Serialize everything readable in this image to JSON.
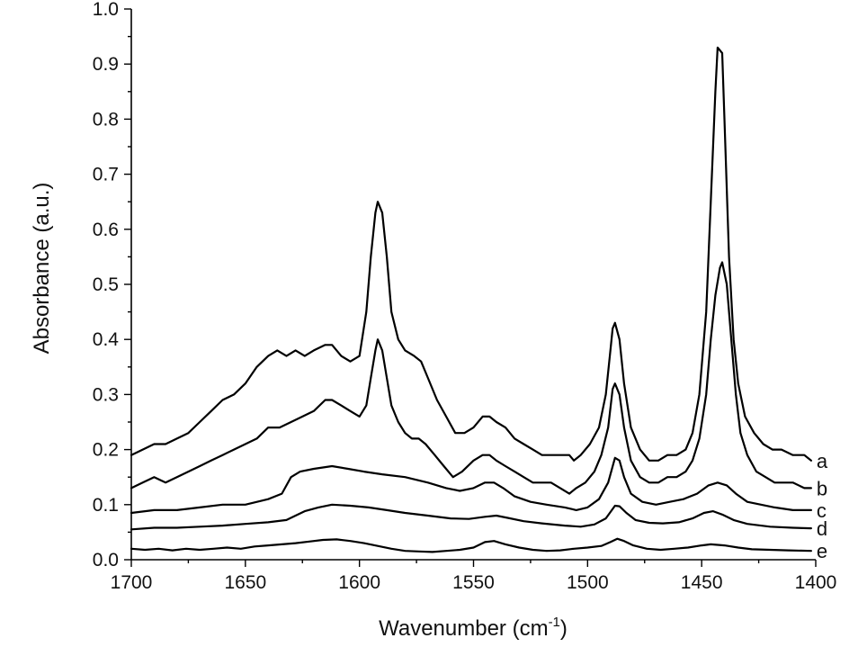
{
  "chart_data": {
    "type": "line",
    "xlabel": "Wavenumber (cm",
    "xlabel_sup": "-1",
    "xlabel_close": ")",
    "ylabel": "Absorbance (a.u.)",
    "xlim": [
      1700,
      1400
    ],
    "ylim": [
      0,
      1.0
    ],
    "x_ticks": [
      "1700",
      "1650",
      "1600",
      "1550",
      "1500",
      "1450",
      "1400"
    ],
    "y_ticks": [
      "0.0",
      "0.1",
      "0.2",
      "0.3",
      "0.4",
      "0.5",
      "0.6",
      "0.7",
      "0.8",
      "0.9",
      "1.0"
    ],
    "grid": false,
    "series": [
      {
        "name": "a",
        "points": [
          [
            1700,
            0.19
          ],
          [
            1695,
            0.2
          ],
          [
            1690,
            0.21
          ],
          [
            1685,
            0.21
          ],
          [
            1680,
            0.22
          ],
          [
            1675,
            0.23
          ],
          [
            1670,
            0.25
          ],
          [
            1665,
            0.27
          ],
          [
            1660,
            0.29
          ],
          [
            1655,
            0.3
          ],
          [
            1650,
            0.32
          ],
          [
            1645,
            0.35
          ],
          [
            1640,
            0.37
          ],
          [
            1636,
            0.38
          ],
          [
            1632,
            0.37
          ],
          [
            1628,
            0.38
          ],
          [
            1624,
            0.37
          ],
          [
            1620,
            0.38
          ],
          [
            1615,
            0.39
          ],
          [
            1612,
            0.39
          ],
          [
            1608,
            0.37
          ],
          [
            1604,
            0.36
          ],
          [
            1600,
            0.37
          ],
          [
            1597,
            0.45
          ],
          [
            1595,
            0.55
          ],
          [
            1593,
            0.63
          ],
          [
            1592,
            0.65
          ],
          [
            1590,
            0.63
          ],
          [
            1588,
            0.55
          ],
          [
            1586,
            0.45
          ],
          [
            1583,
            0.4
          ],
          [
            1580,
            0.38
          ],
          [
            1576,
            0.37
          ],
          [
            1573,
            0.36
          ],
          [
            1570,
            0.33
          ],
          [
            1566,
            0.29
          ],
          [
            1562,
            0.26
          ],
          [
            1558,
            0.23
          ],
          [
            1554,
            0.23
          ],
          [
            1550,
            0.24
          ],
          [
            1546,
            0.26
          ],
          [
            1543,
            0.26
          ],
          [
            1540,
            0.25
          ],
          [
            1536,
            0.24
          ],
          [
            1532,
            0.22
          ],
          [
            1528,
            0.21
          ],
          [
            1524,
            0.2
          ],
          [
            1520,
            0.19
          ],
          [
            1516,
            0.19
          ],
          [
            1512,
            0.19
          ],
          [
            1508,
            0.19
          ],
          [
            1506,
            0.18
          ],
          [
            1503,
            0.19
          ],
          [
            1499,
            0.21
          ],
          [
            1495,
            0.24
          ],
          [
            1492,
            0.3
          ],
          [
            1490,
            0.38
          ],
          [
            1489,
            0.42
          ],
          [
            1488,
            0.43
          ],
          [
            1486,
            0.4
          ],
          [
            1484,
            0.32
          ],
          [
            1481,
            0.24
          ],
          [
            1477,
            0.2
          ],
          [
            1473,
            0.18
          ],
          [
            1469,
            0.18
          ],
          [
            1465,
            0.19
          ],
          [
            1461,
            0.19
          ],
          [
            1457,
            0.2
          ],
          [
            1454,
            0.23
          ],
          [
            1451,
            0.3
          ],
          [
            1448,
            0.45
          ],
          [
            1446,
            0.65
          ],
          [
            1444,
            0.85
          ],
          [
            1443,
            0.93
          ],
          [
            1441,
            0.92
          ],
          [
            1440,
            0.8
          ],
          [
            1438,
            0.55
          ],
          [
            1436,
            0.4
          ],
          [
            1434,
            0.32
          ],
          [
            1431,
            0.26
          ],
          [
            1427,
            0.23
          ],
          [
            1423,
            0.21
          ],
          [
            1419,
            0.2
          ],
          [
            1415,
            0.2
          ],
          [
            1410,
            0.19
          ],
          [
            1405,
            0.19
          ],
          [
            1402,
            0.18
          ]
        ]
      },
      {
        "name": "b",
        "points": [
          [
            1700,
            0.13
          ],
          [
            1695,
            0.14
          ],
          [
            1690,
            0.15
          ],
          [
            1685,
            0.14
          ],
          [
            1680,
            0.15
          ],
          [
            1675,
            0.16
          ],
          [
            1670,
            0.17
          ],
          [
            1665,
            0.18
          ],
          [
            1660,
            0.19
          ],
          [
            1655,
            0.2
          ],
          [
            1650,
            0.21
          ],
          [
            1645,
            0.22
          ],
          [
            1640,
            0.24
          ],
          [
            1635,
            0.24
          ],
          [
            1630,
            0.25
          ],
          [
            1625,
            0.26
          ],
          [
            1620,
            0.27
          ],
          [
            1615,
            0.29
          ],
          [
            1612,
            0.29
          ],
          [
            1608,
            0.28
          ],
          [
            1604,
            0.27
          ],
          [
            1600,
            0.26
          ],
          [
            1597,
            0.28
          ],
          [
            1595,
            0.33
          ],
          [
            1593,
            0.38
          ],
          [
            1592,
            0.4
          ],
          [
            1590,
            0.38
          ],
          [
            1588,
            0.33
          ],
          [
            1586,
            0.28
          ],
          [
            1583,
            0.25
          ],
          [
            1580,
            0.23
          ],
          [
            1577,
            0.22
          ],
          [
            1574,
            0.22
          ],
          [
            1571,
            0.21
          ],
          [
            1567,
            0.19
          ],
          [
            1563,
            0.17
          ],
          [
            1559,
            0.15
          ],
          [
            1555,
            0.16
          ],
          [
            1550,
            0.18
          ],
          [
            1546,
            0.19
          ],
          [
            1543,
            0.19
          ],
          [
            1540,
            0.18
          ],
          [
            1536,
            0.17
          ],
          [
            1532,
            0.16
          ],
          [
            1528,
            0.15
          ],
          [
            1524,
            0.14
          ],
          [
            1520,
            0.14
          ],
          [
            1516,
            0.14
          ],
          [
            1512,
            0.13
          ],
          [
            1508,
            0.12
          ],
          [
            1505,
            0.13
          ],
          [
            1501,
            0.14
          ],
          [
            1497,
            0.16
          ],
          [
            1494,
            0.19
          ],
          [
            1491,
            0.24
          ],
          [
            1489,
            0.31
          ],
          [
            1488,
            0.32
          ],
          [
            1486,
            0.3
          ],
          [
            1484,
            0.24
          ],
          [
            1481,
            0.18
          ],
          [
            1477,
            0.15
          ],
          [
            1473,
            0.14
          ],
          [
            1469,
            0.14
          ],
          [
            1465,
            0.15
          ],
          [
            1461,
            0.15
          ],
          [
            1457,
            0.16
          ],
          [
            1454,
            0.18
          ],
          [
            1451,
            0.22
          ],
          [
            1448,
            0.3
          ],
          [
            1446,
            0.4
          ],
          [
            1444,
            0.48
          ],
          [
            1442,
            0.53
          ],
          [
            1441,
            0.54
          ],
          [
            1439,
            0.5
          ],
          [
            1437,
            0.4
          ],
          [
            1435,
            0.3
          ],
          [
            1433,
            0.23
          ],
          [
            1430,
            0.19
          ],
          [
            1426,
            0.16
          ],
          [
            1422,
            0.15
          ],
          [
            1418,
            0.14
          ],
          [
            1414,
            0.14
          ],
          [
            1410,
            0.14
          ],
          [
            1405,
            0.13
          ],
          [
            1402,
            0.13
          ]
        ]
      },
      {
        "name": "c",
        "points": [
          [
            1700,
            0.085
          ],
          [
            1690,
            0.09
          ],
          [
            1680,
            0.09
          ],
          [
            1670,
            0.095
          ],
          [
            1660,
            0.1
          ],
          [
            1650,
            0.1
          ],
          [
            1640,
            0.11
          ],
          [
            1634,
            0.12
          ],
          [
            1630,
            0.15
          ],
          [
            1626,
            0.16
          ],
          [
            1620,
            0.165
          ],
          [
            1612,
            0.17
          ],
          [
            1605,
            0.165
          ],
          [
            1598,
            0.16
          ],
          [
            1590,
            0.155
          ],
          [
            1580,
            0.15
          ],
          [
            1570,
            0.14
          ],
          [
            1562,
            0.13
          ],
          [
            1556,
            0.125
          ],
          [
            1550,
            0.13
          ],
          [
            1545,
            0.14
          ],
          [
            1541,
            0.14
          ],
          [
            1537,
            0.13
          ],
          [
            1532,
            0.115
          ],
          [
            1525,
            0.105
          ],
          [
            1518,
            0.1
          ],
          [
            1510,
            0.095
          ],
          [
            1505,
            0.09
          ],
          [
            1500,
            0.095
          ],
          [
            1495,
            0.11
          ],
          [
            1491,
            0.14
          ],
          [
            1488,
            0.185
          ],
          [
            1486,
            0.18
          ],
          [
            1484,
            0.15
          ],
          [
            1481,
            0.12
          ],
          [
            1476,
            0.105
          ],
          [
            1470,
            0.1
          ],
          [
            1464,
            0.105
          ],
          [
            1458,
            0.11
          ],
          [
            1452,
            0.12
          ],
          [
            1447,
            0.135
          ],
          [
            1443,
            0.14
          ],
          [
            1439,
            0.135
          ],
          [
            1435,
            0.12
          ],
          [
            1430,
            0.105
          ],
          [
            1424,
            0.1
          ],
          [
            1418,
            0.095
          ],
          [
            1410,
            0.09
          ],
          [
            1402,
            0.09
          ]
        ]
      },
      {
        "name": "d",
        "points": [
          [
            1700,
            0.055
          ],
          [
            1690,
            0.058
          ],
          [
            1680,
            0.058
          ],
          [
            1670,
            0.06
          ],
          [
            1660,
            0.062
          ],
          [
            1650,
            0.065
          ],
          [
            1640,
            0.068
          ],
          [
            1632,
            0.072
          ],
          [
            1628,
            0.08
          ],
          [
            1624,
            0.088
          ],
          [
            1618,
            0.095
          ],
          [
            1612,
            0.1
          ],
          [
            1604,
            0.098
          ],
          [
            1596,
            0.095
          ],
          [
            1588,
            0.09
          ],
          [
            1580,
            0.085
          ],
          [
            1570,
            0.08
          ],
          [
            1560,
            0.075
          ],
          [
            1552,
            0.074
          ],
          [
            1545,
            0.078
          ],
          [
            1540,
            0.08
          ],
          [
            1535,
            0.076
          ],
          [
            1528,
            0.07
          ],
          [
            1520,
            0.066
          ],
          [
            1510,
            0.062
          ],
          [
            1503,
            0.06
          ],
          [
            1497,
            0.064
          ],
          [
            1492,
            0.075
          ],
          [
            1488,
            0.098
          ],
          [
            1486,
            0.097
          ],
          [
            1483,
            0.085
          ],
          [
            1479,
            0.072
          ],
          [
            1473,
            0.067
          ],
          [
            1467,
            0.066
          ],
          [
            1460,
            0.068
          ],
          [
            1454,
            0.075
          ],
          [
            1449,
            0.085
          ],
          [
            1445,
            0.088
          ],
          [
            1441,
            0.082
          ],
          [
            1436,
            0.072
          ],
          [
            1430,
            0.065
          ],
          [
            1420,
            0.06
          ],
          [
            1410,
            0.058
          ],
          [
            1402,
            0.057
          ]
        ]
      },
      {
        "name": "e",
        "points": [
          [
            1700,
            0.02
          ],
          [
            1694,
            0.018
          ],
          [
            1688,
            0.02
          ],
          [
            1682,
            0.017
          ],
          [
            1676,
            0.02
          ],
          [
            1670,
            0.018
          ],
          [
            1664,
            0.02
          ],
          [
            1658,
            0.022
          ],
          [
            1652,
            0.02
          ],
          [
            1646,
            0.024
          ],
          [
            1640,
            0.026
          ],
          [
            1634,
            0.028
          ],
          [
            1628,
            0.03
          ],
          [
            1622,
            0.033
          ],
          [
            1616,
            0.036
          ],
          [
            1610,
            0.037
          ],
          [
            1604,
            0.034
          ],
          [
            1598,
            0.03
          ],
          [
            1592,
            0.025
          ],
          [
            1586,
            0.02
          ],
          [
            1580,
            0.016
          ],
          [
            1574,
            0.015
          ],
          [
            1568,
            0.014
          ],
          [
            1562,
            0.016
          ],
          [
            1556,
            0.018
          ],
          [
            1550,
            0.022
          ],
          [
            1545,
            0.032
          ],
          [
            1541,
            0.034
          ],
          [
            1536,
            0.028
          ],
          [
            1530,
            0.022
          ],
          [
            1524,
            0.018
          ],
          [
            1518,
            0.016
          ],
          [
            1512,
            0.017
          ],
          [
            1506,
            0.02
          ],
          [
            1500,
            0.022
          ],
          [
            1494,
            0.025
          ],
          [
            1490,
            0.032
          ],
          [
            1487,
            0.038
          ],
          [
            1484,
            0.034
          ],
          [
            1480,
            0.026
          ],
          [
            1474,
            0.02
          ],
          [
            1468,
            0.018
          ],
          [
            1462,
            0.02
          ],
          [
            1456,
            0.022
          ],
          [
            1450,
            0.026
          ],
          [
            1446,
            0.028
          ],
          [
            1440,
            0.026
          ],
          [
            1434,
            0.022
          ],
          [
            1428,
            0.019
          ],
          [
            1420,
            0.018
          ],
          [
            1412,
            0.017
          ],
          [
            1402,
            0.016
          ]
        ]
      }
    ]
  }
}
